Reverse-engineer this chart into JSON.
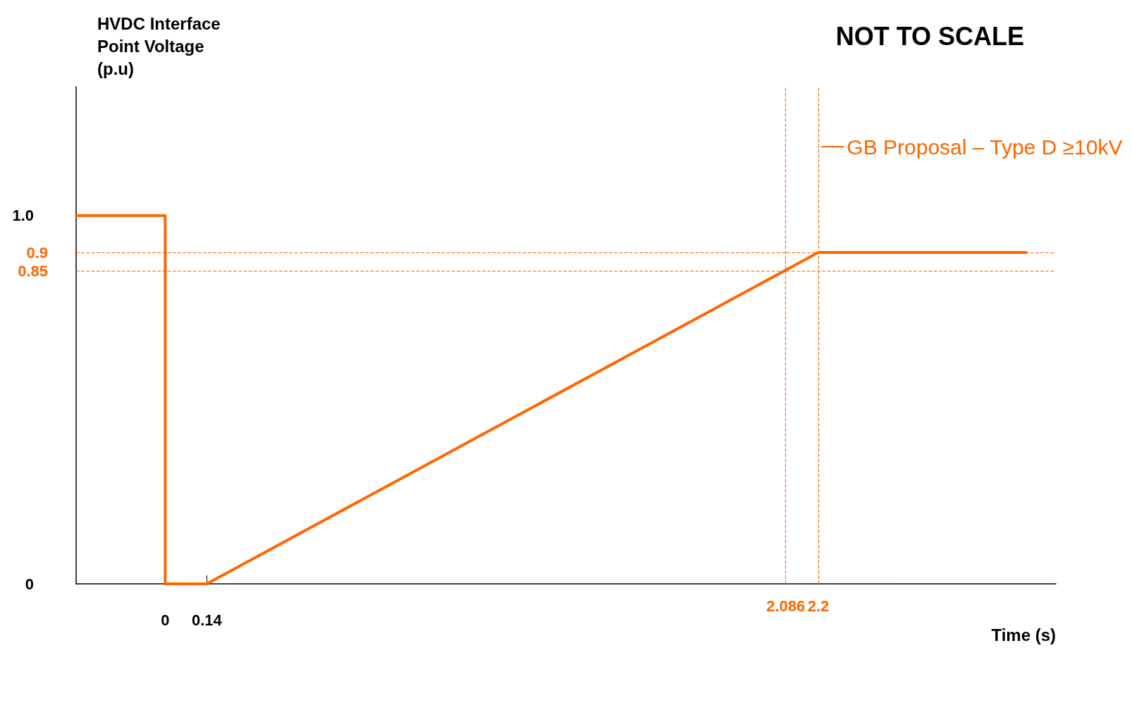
{
  "chart_data": {
    "type": "line",
    "title": "NOT TO SCALE",
    "xlabel": "Time (s)",
    "ylabel": "HVDC Interface\nPoint Voltage\n(p.u)",
    "series": [
      {
        "name": "GB Proposal – Type D ≥10kV",
        "color": "#ff6600",
        "x": [
          -0.3,
          0,
          0,
          0.14,
          2.2,
          2.9
        ],
        "values": [
          1.0,
          1.0,
          0,
          0,
          0.9,
          0.9
        ]
      }
    ],
    "xlim": [
      -0.3,
      3.0
    ],
    "xticks": [
      0,
      0.14
    ],
    "ylim": [
      0,
      1.35
    ],
    "yticks": [
      0,
      {
        "value": 1.0,
        "label": "1.0"
      }
    ],
    "ref_lines": [
      {
        "axis": "y",
        "value": 0.9,
        "label": "0.9",
        "color": "#ff6600",
        "line_style": "dashed"
      },
      {
        "axis": "y",
        "value": 0.85,
        "label": "0.85",
        "color": "#ff6600",
        "line_style": "dashed"
      },
      {
        "axis": "x",
        "value": 2.086,
        "label": "2.086",
        "color": "#ff6600",
        "line_style": "dashed"
      },
      {
        "axis": "x",
        "value": 2.2,
        "label": "2.2",
        "color": "#ff6600",
        "line_style": "dashed"
      }
    ],
    "grid": false,
    "legend": "top right",
    "marker": "none",
    "line_style": "solid"
  }
}
